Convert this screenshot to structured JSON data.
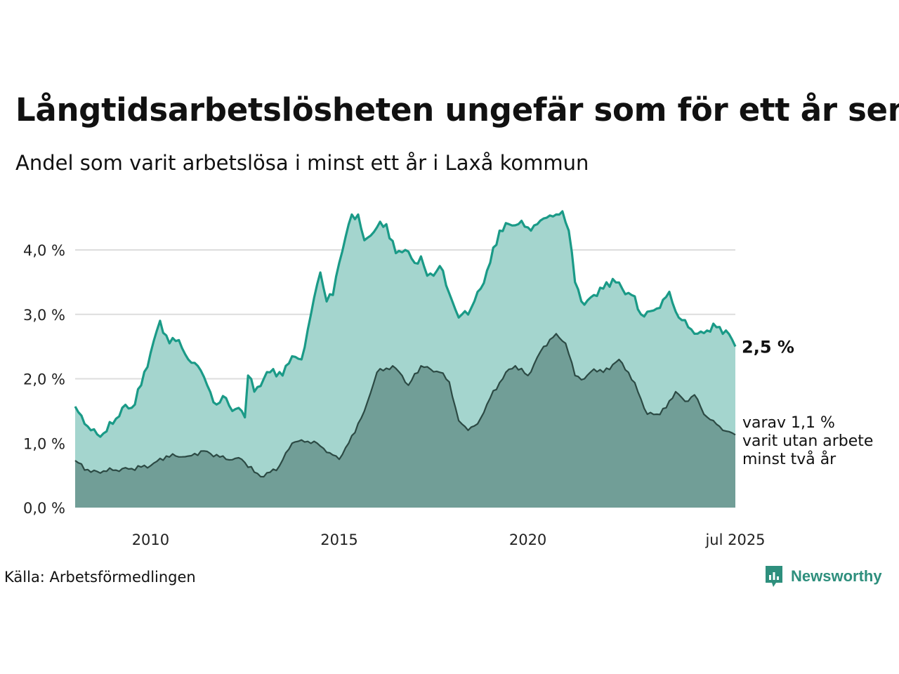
{
  "header": {
    "title": "Långtidsarbetslösheten ungefär som för ett år sen",
    "subtitle": "Andel som varit arbetslösa i minst ett år i Laxå kommun"
  },
  "footer": {
    "source": "Källa: Arbetsförmedlingen",
    "brand": "Newsworthy"
  },
  "colors": {
    "main_line": "#1a9a87",
    "main_fill": "#a4d5ce",
    "sub_line": "#2c4a44",
    "sub_fill": "#719e97",
    "grid": "#dddddd",
    "brand": "#2e8f7d"
  },
  "chart_data": {
    "type": "area",
    "x_start": "2008-01",
    "x_end": "2025-07",
    "x_ticks": [
      {
        "label": "2010",
        "year": 2010,
        "month": 1
      },
      {
        "label": "2015",
        "year": 2015,
        "month": 1
      },
      {
        "label": "2020",
        "year": 2020,
        "month": 1
      },
      {
        "label": "jul 2025",
        "year": 2025,
        "month": 7
      }
    ],
    "y_ticks": [
      {
        "label": "0,0 %",
        "value": 0
      },
      {
        "label": "1,0 %",
        "value": 1
      },
      {
        "label": "2,0 %",
        "value": 2
      },
      {
        "label": "3,0 %",
        "value": 3
      },
      {
        "label": "4,0 %",
        "value": 4
      }
    ],
    "ylim": [
      0,
      4.6
    ],
    "grid": true,
    "end_label": "2,5 %",
    "sub_label_lines": [
      "varav 1,1 %",
      "varit utan arbete",
      "minst två år"
    ],
    "series": [
      {
        "key": "main",
        "anchors": [
          [
            "2008-01",
            1.57
          ],
          [
            "2008-04",
            1.3
          ],
          [
            "2008-06",
            1.2
          ],
          [
            "2008-09",
            1.1
          ],
          [
            "2009-01",
            1.3
          ],
          [
            "2009-04",
            1.55
          ],
          [
            "2009-07",
            1.55
          ],
          [
            "2009-10",
            1.9
          ],
          [
            "2010-01",
            2.4
          ],
          [
            "2010-04",
            2.9
          ],
          [
            "2010-07",
            2.55
          ],
          [
            "2010-10",
            2.6
          ],
          [
            "2011-01",
            2.3
          ],
          [
            "2011-04",
            2.2
          ],
          [
            "2011-07",
            1.9
          ],
          [
            "2011-10",
            1.6
          ],
          [
            "2012-01",
            1.7
          ],
          [
            "2012-03",
            1.5
          ],
          [
            "2012-06",
            1.5
          ],
          [
            "2012-07",
            1.4
          ],
          [
            "2012-08",
            2.05
          ],
          [
            "2012-10",
            1.8
          ],
          [
            "2013-01",
            2.0
          ],
          [
            "2013-04",
            2.15
          ],
          [
            "2013-07",
            2.05
          ],
          [
            "2013-10",
            2.35
          ],
          [
            "2014-01",
            2.3
          ],
          [
            "2014-04",
            3.0
          ],
          [
            "2014-07",
            3.65
          ],
          [
            "2014-09",
            3.2
          ],
          [
            "2014-11",
            3.3
          ],
          [
            "2015-01",
            3.8
          ],
          [
            "2015-03",
            4.2
          ],
          [
            "2015-05",
            4.55
          ],
          [
            "2015-07",
            4.55
          ],
          [
            "2015-09",
            4.15
          ],
          [
            "2016-01",
            4.35
          ],
          [
            "2016-04",
            4.4
          ],
          [
            "2016-07",
            3.95
          ],
          [
            "2016-10",
            4.0
          ],
          [
            "2017-01",
            3.8
          ],
          [
            "2017-03",
            3.9
          ],
          [
            "2017-05",
            3.6
          ],
          [
            "2017-07",
            3.6
          ],
          [
            "2017-09",
            3.75
          ],
          [
            "2017-11",
            3.45
          ],
          [
            "2018-01",
            3.2
          ],
          [
            "2018-03",
            2.95
          ],
          [
            "2018-05",
            3.05
          ],
          [
            "2018-07",
            3.1
          ],
          [
            "2018-10",
            3.4
          ],
          [
            "2019-01",
            3.8
          ],
          [
            "2019-04",
            4.3
          ],
          [
            "2019-07",
            4.4
          ],
          [
            "2019-10",
            4.4
          ],
          [
            "2020-01",
            4.35
          ],
          [
            "2020-04",
            4.4
          ],
          [
            "2020-07",
            4.5
          ],
          [
            "2020-10",
            4.55
          ],
          [
            "2020-12",
            4.6
          ],
          [
            "2021-02",
            4.3
          ],
          [
            "2021-04",
            3.5
          ],
          [
            "2021-07",
            3.15
          ],
          [
            "2021-10",
            3.3
          ],
          [
            "2022-01",
            3.4
          ],
          [
            "2022-04",
            3.55
          ],
          [
            "2022-07",
            3.4
          ],
          [
            "2022-10",
            3.3
          ],
          [
            "2023-01",
            3.0
          ],
          [
            "2023-04",
            3.05
          ],
          [
            "2023-07",
            3.1
          ],
          [
            "2023-10",
            3.35
          ],
          [
            "2024-01",
            2.95
          ],
          [
            "2024-04",
            2.8
          ],
          [
            "2024-07",
            2.7
          ],
          [
            "2024-10",
            2.75
          ],
          [
            "2025-01",
            2.8
          ],
          [
            "2025-04",
            2.75
          ],
          [
            "2025-07",
            2.5
          ]
        ]
      },
      {
        "key": "sub",
        "anchors": [
          [
            "2008-01",
            0.73
          ],
          [
            "2008-06",
            0.55
          ],
          [
            "2009-01",
            0.58
          ],
          [
            "2009-06",
            0.6
          ],
          [
            "2010-01",
            0.65
          ],
          [
            "2010-06",
            0.8
          ],
          [
            "2011-01",
            0.8
          ],
          [
            "2011-06",
            0.88
          ],
          [
            "2012-01",
            0.75
          ],
          [
            "2012-06",
            0.75
          ],
          [
            "2012-10",
            0.55
          ],
          [
            "2013-01",
            0.48
          ],
          [
            "2013-06",
            0.65
          ],
          [
            "2013-10",
            1.0
          ],
          [
            "2014-01",
            1.05
          ],
          [
            "2014-06",
            1.0
          ],
          [
            "2014-10",
            0.85
          ],
          [
            "2015-01",
            0.75
          ],
          [
            "2015-04",
            1.0
          ],
          [
            "2015-09",
            1.5
          ],
          [
            "2016-01",
            2.1
          ],
          [
            "2016-06",
            2.2
          ],
          [
            "2016-09",
            2.05
          ],
          [
            "2016-11",
            1.9
          ],
          [
            "2017-03",
            2.2
          ],
          [
            "2017-06",
            2.15
          ],
          [
            "2017-09",
            2.1
          ],
          [
            "2017-12",
            1.95
          ],
          [
            "2018-03",
            1.35
          ],
          [
            "2018-06",
            1.2
          ],
          [
            "2018-09",
            1.3
          ],
          [
            "2019-01",
            1.7
          ],
          [
            "2019-06",
            2.1
          ],
          [
            "2019-09",
            2.2
          ],
          [
            "2020-01",
            2.05
          ],
          [
            "2020-06",
            2.5
          ],
          [
            "2020-10",
            2.7
          ],
          [
            "2021-01",
            2.55
          ],
          [
            "2021-04",
            2.05
          ],
          [
            "2021-07",
            2.0
          ],
          [
            "2021-10",
            2.15
          ],
          [
            "2022-01",
            2.1
          ],
          [
            "2022-06",
            2.3
          ],
          [
            "2022-09",
            2.1
          ],
          [
            "2022-12",
            1.8
          ],
          [
            "2023-03",
            1.45
          ],
          [
            "2023-06",
            1.45
          ],
          [
            "2023-09",
            1.55
          ],
          [
            "2023-12",
            1.8
          ],
          [
            "2024-03",
            1.65
          ],
          [
            "2024-06",
            1.75
          ],
          [
            "2024-09",
            1.45
          ],
          [
            "2024-12",
            1.35
          ],
          [
            "2025-03",
            1.2
          ],
          [
            "2025-07",
            1.13
          ]
        ]
      }
    ]
  }
}
